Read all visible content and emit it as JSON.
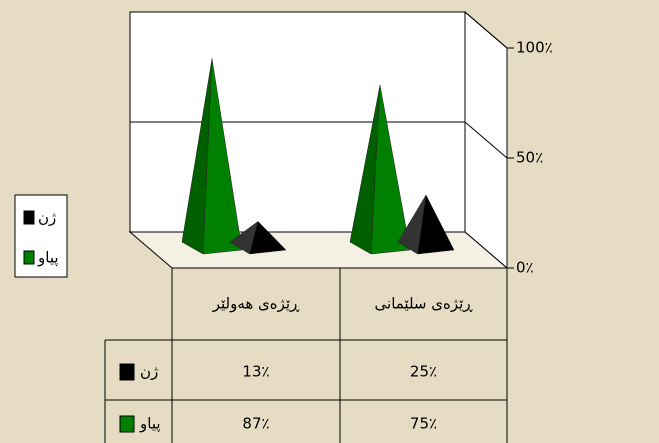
{
  "chart_data": {
    "type": "pyramid",
    "categories": [
      "ڕێژەی هەولێر",
      "ڕێژەی سلێمانی"
    ],
    "series": [
      {
        "name": "ژن",
        "color": "#000000",
        "values": [
          13,
          25
        ],
        "value_labels": [
          "13٪",
          "25٪"
        ]
      },
      {
        "name": "پیاو",
        "color": "#008000",
        "values": [
          87,
          75
        ],
        "value_labels": [
          "87٪",
          "75٪"
        ]
      }
    ],
    "ylim": [
      0,
      100
    ],
    "yticks": [
      {
        "value": 0,
        "label": "0٪"
      },
      {
        "value": 50,
        "label": "50٪"
      },
      {
        "value": 100,
        "label": "100٪"
      }
    ],
    "grid": true
  }
}
